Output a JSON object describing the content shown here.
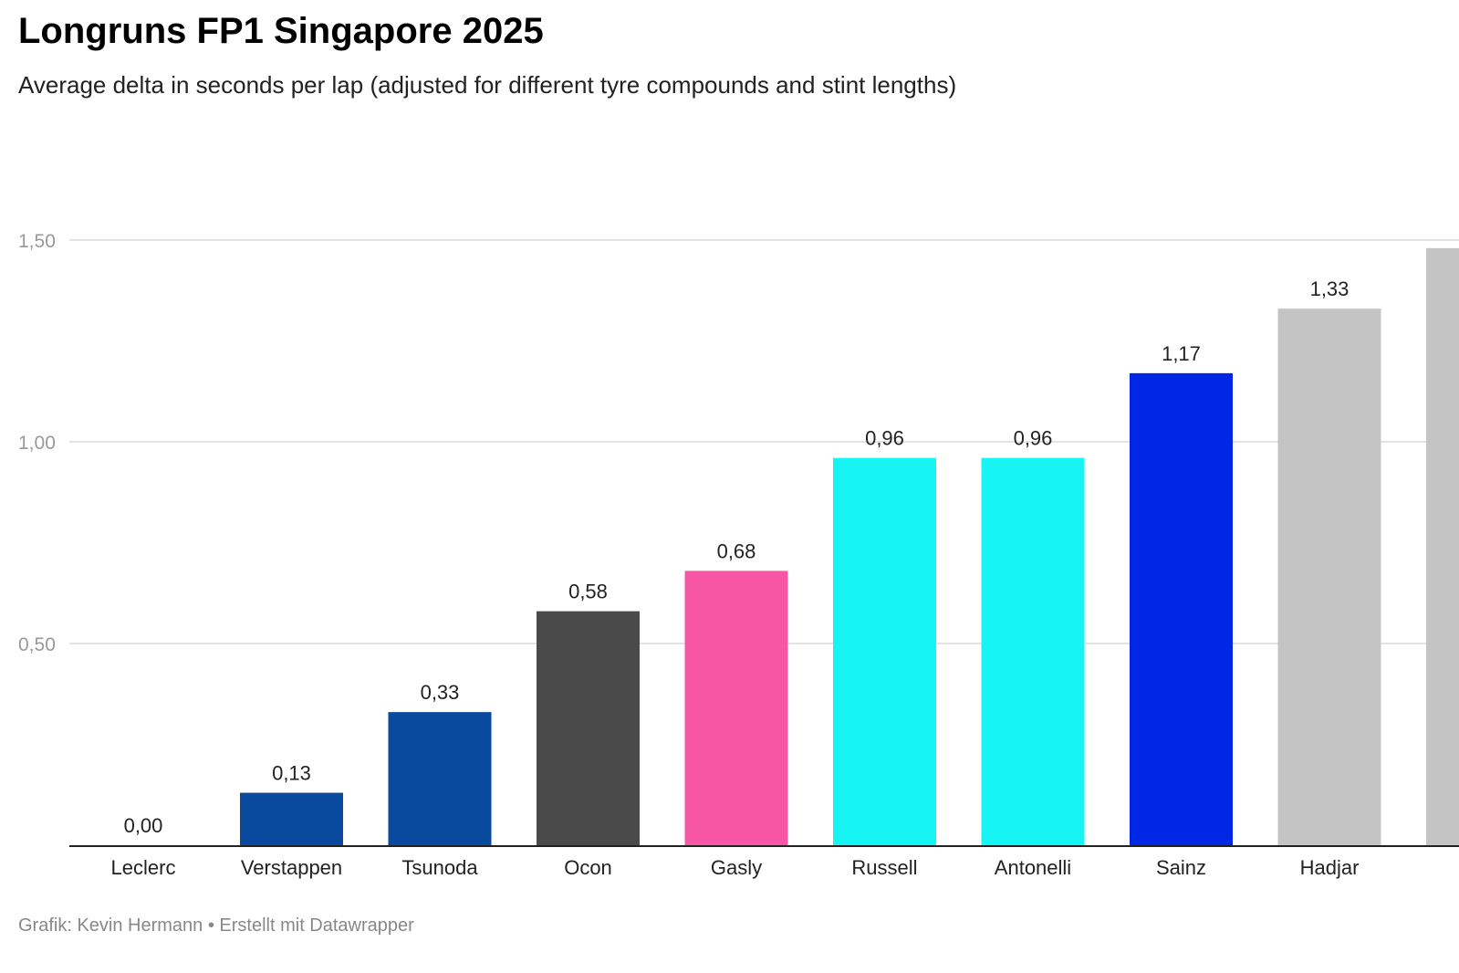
{
  "title": "Longruns FP1 Singapore 2025",
  "subtitle": "Average delta in seconds per lap (adjusted for different tyre compounds and stint lengths)",
  "footer": "Grafik: Kevin Hermann • Erstellt mit Datawrapper",
  "chart_data": {
    "type": "bar",
    "title": "Longruns FP1 Singapore 2025",
    "subtitle": "Average delta in seconds per lap (adjusted for different tyre compounds and stint lengths)",
    "xlabel": "",
    "ylabel": "",
    "ylim": [
      0,
      1.5
    ],
    "yticks": [
      "0,50",
      "1,00",
      "1,50"
    ],
    "ytick_values": [
      0.5,
      1.0,
      1.5
    ],
    "grid": true,
    "categories": [
      "Leclerc",
      "Verstappen",
      "Tsunoda",
      "Ocon",
      "Gasly",
      "Russell",
      "Antonelli",
      "Sainz",
      "Hadjar",
      ""
    ],
    "values": [
      0.0,
      0.13,
      0.33,
      0.58,
      0.68,
      0.96,
      0.96,
      1.17,
      1.33,
      1.48
    ],
    "value_labels": [
      "0,00",
      "0,13",
      "0,33",
      "0,58",
      "0,68",
      "0,96",
      "0,96",
      "1,17",
      "1,33",
      ""
    ],
    "colors": [
      "#e8002d",
      "#0a4a9e",
      "#0a4a9e",
      "#4a4a4a",
      "#f756a5",
      "#16f4f4",
      "#16f4f4",
      "#0026e6",
      "#c4c4c4",
      "#c4c4c4"
    ]
  }
}
